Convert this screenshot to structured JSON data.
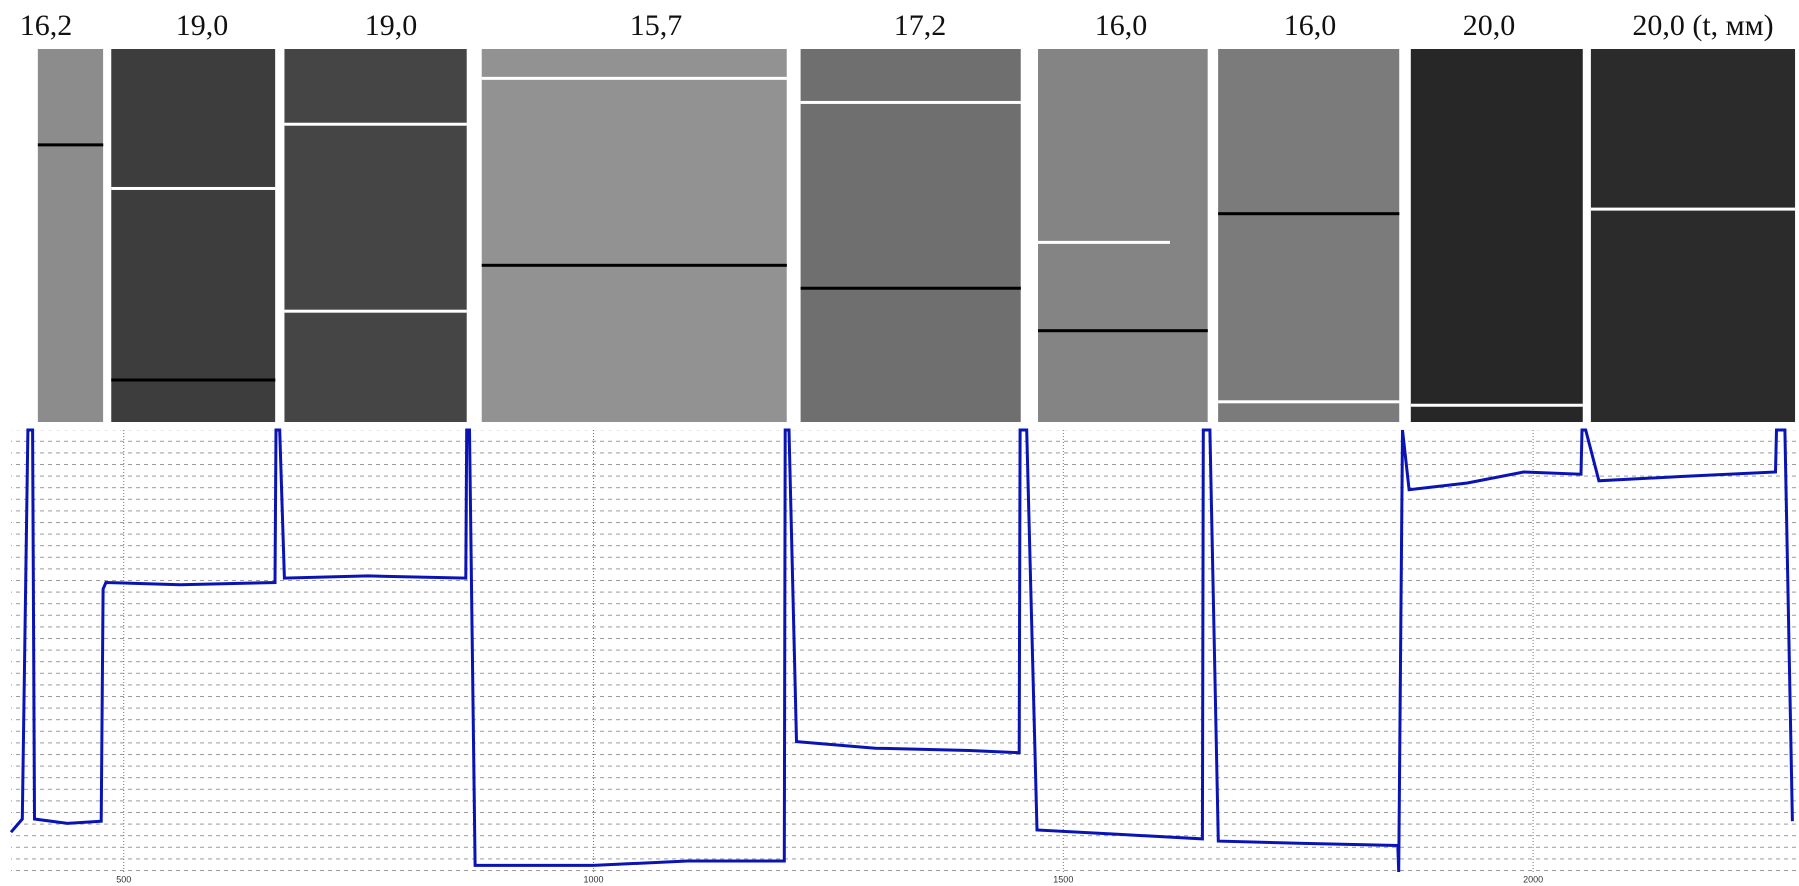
{
  "chart_data": {
    "type": "line",
    "annotations": [
      "16,2",
      "19,0",
      "19,0",
      "15,7",
      "17,2",
      "16,0",
      "16,0",
      "20,0",
      "20,0 (t, мм)"
    ],
    "x": [
      380,
      392,
      398,
      403,
      405,
      440,
      476,
      478,
      481,
      560,
      661,
      662,
      666,
      671,
      760,
      864,
      865,
      868,
      874,
      1000,
      1100,
      1203,
      1204,
      1208,
      1216,
      1300,
      1400,
      1453,
      1454,
      1461,
      1472,
      1560,
      1648,
      1649,
      1656,
      1665,
      1750,
      1856,
      1857,
      1861,
      1868,
      1930,
      1990,
      2051,
      2052,
      2056,
      2070,
      2160,
      2258,
      2259,
      2268,
      2276
    ],
    "values": [
      9,
      12,
      100,
      100,
      12,
      11,
      11.5,
      64,
      65.5,
      65,
      65.5,
      100,
      100,
      66.5,
      67,
      66.5,
      100,
      100,
      1.5,
      1.5,
      2.5,
      2.5,
      100,
      100,
      29.5,
      28,
      27.5,
      27,
      100,
      100,
      9.5,
      8.5,
      7.5,
      100,
      100,
      7,
      6.5,
      6,
      0,
      100,
      86.5,
      88,
      90.5,
      90,
      100,
      100,
      88.5,
      89.5,
      90.5,
      100,
      100,
      11.5
    ],
    "color": "#0a14b4",
    "xlim": [
      380,
      2283
    ],
    "xticks": [
      500,
      1000,
      1500,
      2000
    ],
    "ylim": [
      0,
      100
    ],
    "grid": true
  }
}
